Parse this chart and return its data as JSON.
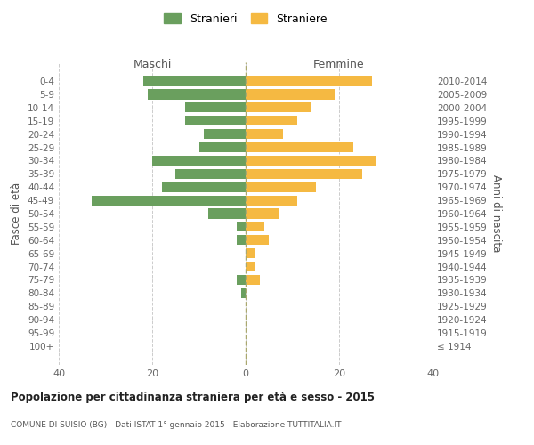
{
  "age_groups": [
    "0-4",
    "5-9",
    "10-14",
    "15-19",
    "20-24",
    "25-29",
    "30-34",
    "35-39",
    "40-44",
    "45-49",
    "50-54",
    "55-59",
    "60-64",
    "65-69",
    "70-74",
    "75-79",
    "80-84",
    "85-89",
    "90-94",
    "95-99",
    "100+"
  ],
  "birth_years": [
    "2010-2014",
    "2005-2009",
    "2000-2004",
    "1995-1999",
    "1990-1994",
    "1985-1989",
    "1980-1984",
    "1975-1979",
    "1970-1974",
    "1965-1969",
    "1960-1964",
    "1955-1959",
    "1950-1954",
    "1945-1949",
    "1940-1944",
    "1935-1939",
    "1930-1934",
    "1925-1929",
    "1920-1924",
    "1915-1919",
    "≤ 1914"
  ],
  "maschi": [
    22,
    21,
    13,
    13,
    9,
    10,
    20,
    15,
    18,
    33,
    8,
    2,
    2,
    0,
    0,
    2,
    1,
    0,
    0,
    0,
    0
  ],
  "femmine": [
    27,
    19,
    14,
    11,
    8,
    23,
    28,
    25,
    15,
    11,
    7,
    4,
    5,
    2,
    2,
    3,
    0,
    0,
    0,
    0,
    0
  ],
  "maschi_color": "#6a9f5e",
  "femmine_color": "#f5b942",
  "background_color": "#ffffff",
  "grid_color": "#cccccc",
  "title_main": "Popolazione per cittadinanza straniera per età e sesso - 2015",
  "title_sub": "COMUNE DI SUISIO (BG) - Dati ISTAT 1° gennaio 2015 - Elaborazione TUTTITALIA.IT",
  "xlabel_left": "Maschi",
  "xlabel_right": "Femmine",
  "ylabel_left": "Fasce di età",
  "ylabel_right": "Anni di nascita",
  "legend_stranieri": "Stranieri",
  "legend_straniere": "Straniere",
  "xlim": 40
}
